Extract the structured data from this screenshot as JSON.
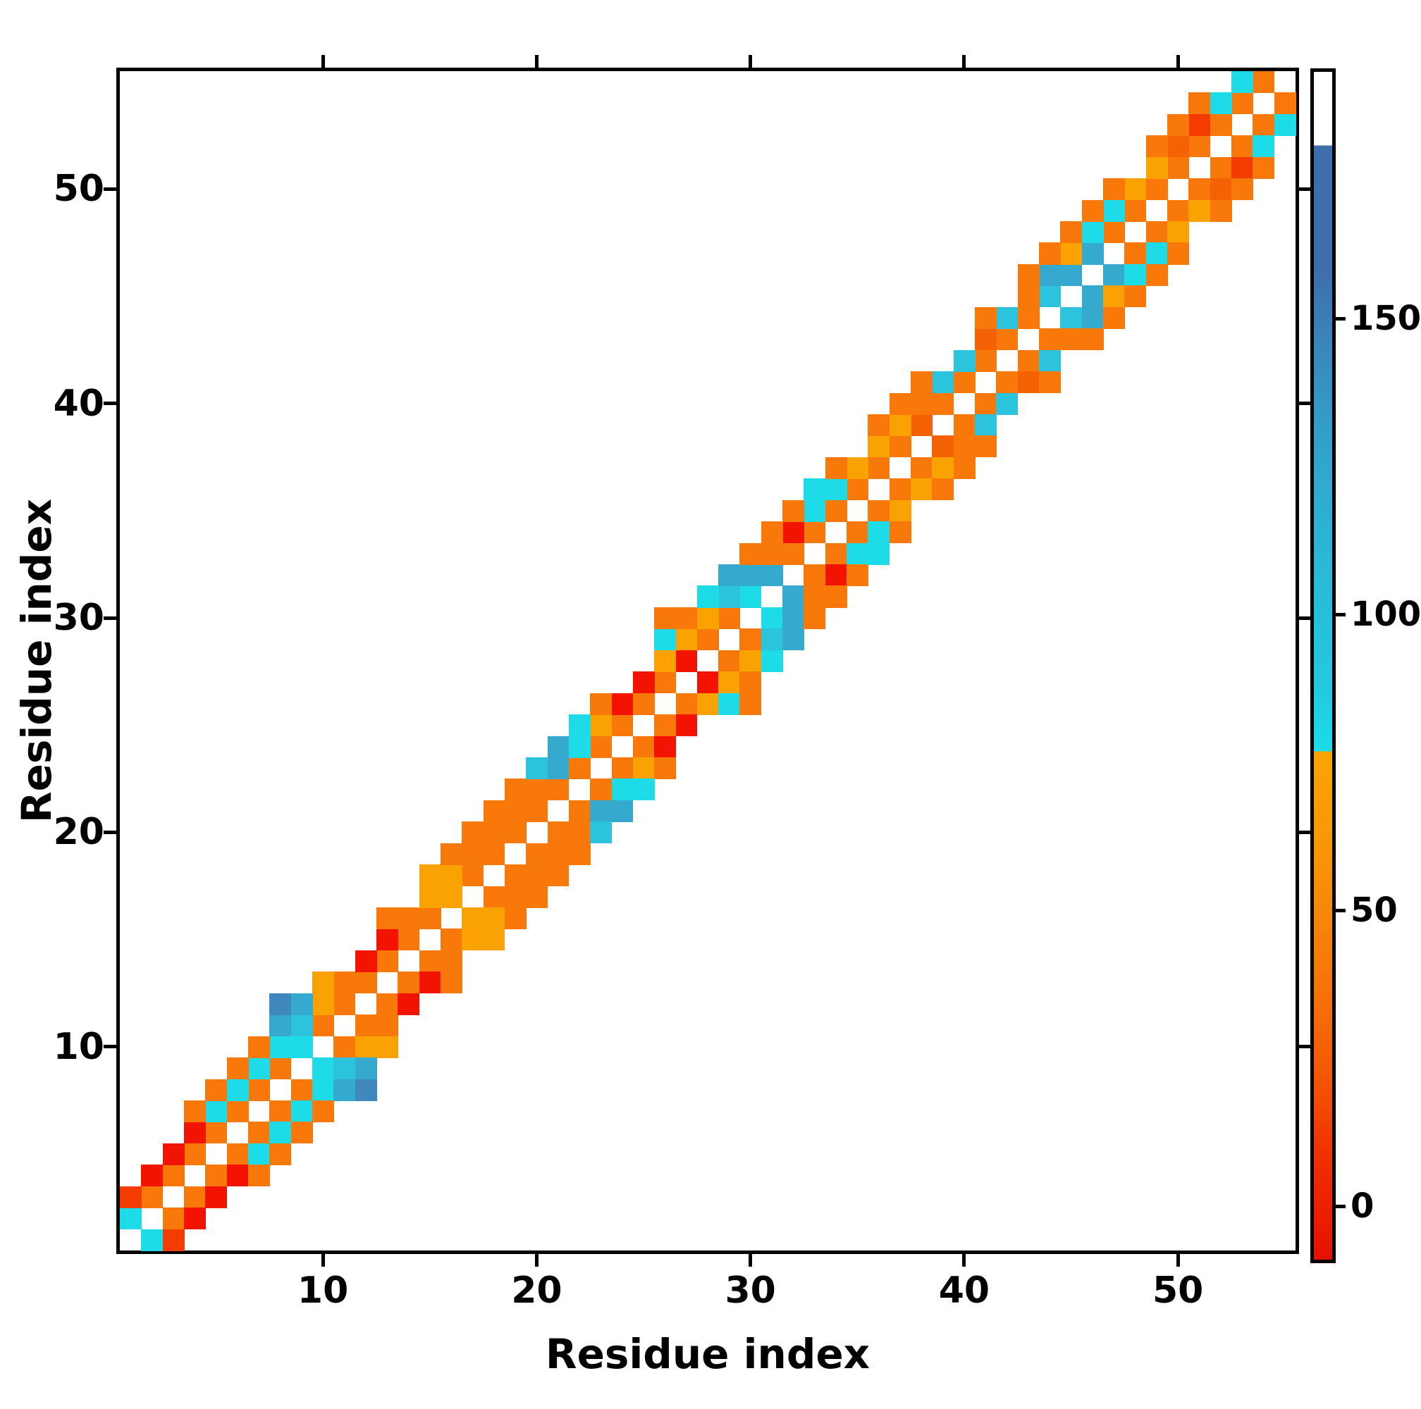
{
  "axes": {
    "xlabel": "Residue index",
    "ylabel": "Residue index",
    "x_ticks": [
      10,
      20,
      30,
      40,
      50
    ],
    "y_ticks": [
      10,
      20,
      30,
      40,
      50
    ]
  },
  "colorbar": {
    "ticks": [
      0,
      50,
      100,
      150
    ],
    "gradient_stops": [
      [
        "0%",
        "#FFFFFF"
      ],
      [
        "6.2%",
        "#FFFFFF"
      ],
      [
        "6.2%",
        "#3E6FAC"
      ],
      [
        "17%",
        "#3E6FAC"
      ],
      [
        "20%",
        "#3C7CB3"
      ],
      [
        "30%",
        "#339FC7"
      ],
      [
        "42%",
        "#2ABAD6"
      ],
      [
        "52%",
        "#23C9DF"
      ],
      [
        "57.2%",
        "#1CDCE9"
      ],
      [
        "57.2%",
        "#FBA303"
      ],
      [
        "65%",
        "#F89706"
      ],
      [
        "72%",
        "#F68309"
      ],
      [
        "78%",
        "#F57108"
      ],
      [
        "83%",
        "#F45D06"
      ],
      [
        "87%",
        "#F24A04"
      ],
      [
        "91%",
        "#F03102"
      ],
      [
        "95%",
        "#ED2201"
      ],
      [
        "100%",
        "#E61000"
      ]
    ]
  },
  "palette": {
    "R": "#F21300",
    "RO": "#F43C00",
    "O2": "#F56105",
    "O": "#F8790A",
    "A": "#FBA203",
    "C": "#1EDBE8",
    "C2": "#2BC4DC",
    "SB": "#36A9CE",
    "DSB": "#3F87BC"
  },
  "chart_data": {
    "type": "heatmap",
    "title": "",
    "xlabel": "Residue index",
    "ylabel": "Residue index",
    "n_residues": 55,
    "symmetric": true,
    "background_value_color": "#FFFFFF",
    "value_range_shown_on_colorbar": [
      0,
      150
    ],
    "tone_values": {
      "R": 5,
      "RO": 15,
      "O2": 35,
      "O": 50,
      "A": 65,
      "C": 85,
      "C2": 100,
      "SB": 120,
      "DSB": 145
    },
    "cells": [
      [
        1,
        2,
        "C"
      ],
      [
        2,
        3,
        "O"
      ],
      [
        3,
        4,
        "O"
      ],
      [
        4,
        5,
        "O"
      ],
      [
        5,
        6,
        "O"
      ],
      [
        6,
        7,
        "O"
      ],
      [
        7,
        8,
        "O"
      ],
      [
        8,
        9,
        "O"
      ],
      [
        9,
        10,
        "C"
      ],
      [
        10,
        11,
        "O"
      ],
      [
        11,
        12,
        "O"
      ],
      [
        12,
        13,
        "O"
      ],
      [
        13,
        14,
        "O"
      ],
      [
        14,
        15,
        "O"
      ],
      [
        15,
        16,
        "O"
      ],
      [
        16,
        17,
        "A"
      ],
      [
        17,
        18,
        "O"
      ],
      [
        18,
        19,
        "O"
      ],
      [
        19,
        20,
        "O"
      ],
      [
        20,
        21,
        "O"
      ],
      [
        21,
        22,
        "O"
      ],
      [
        22,
        23,
        "O"
      ],
      [
        23,
        24,
        "O"
      ],
      [
        24,
        25,
        "O"
      ],
      [
        25,
        26,
        "O"
      ],
      [
        26,
        27,
        "O"
      ],
      [
        27,
        28,
        "R"
      ],
      [
        28,
        29,
        "O"
      ],
      [
        29,
        30,
        "O"
      ],
      [
        30,
        31,
        "C"
      ],
      [
        31,
        32,
        "SB"
      ],
      [
        32,
        33,
        "O"
      ],
      [
        33,
        34,
        "O"
      ],
      [
        34,
        35,
        "O"
      ],
      [
        35,
        36,
        "O"
      ],
      [
        36,
        37,
        "O"
      ],
      [
        37,
        38,
        "O"
      ],
      [
        38,
        39,
        "O2"
      ],
      [
        39,
        40,
        "O"
      ],
      [
        40,
        41,
        "O"
      ],
      [
        41,
        42,
        "O"
      ],
      [
        42,
        43,
        "O"
      ],
      [
        43,
        44,
        "O"
      ],
      [
        44,
        45,
        "C2"
      ],
      [
        45,
        46,
        "SB"
      ],
      [
        46,
        47,
        "SB"
      ],
      [
        47,
        48,
        "O"
      ],
      [
        48,
        49,
        "O"
      ],
      [
        49,
        50,
        "O"
      ],
      [
        50,
        51,
        "O"
      ],
      [
        51,
        52,
        "O"
      ],
      [
        52,
        53,
        "O"
      ],
      [
        53,
        54,
        "O"
      ],
      [
        54,
        55,
        "O"
      ],
      [
        1,
        3,
        "RO"
      ],
      [
        2,
        4,
        "R"
      ],
      [
        3,
        5,
        "R"
      ],
      [
        4,
        6,
        "R"
      ],
      [
        5,
        7,
        "C"
      ],
      [
        6,
        8,
        "C"
      ],
      [
        7,
        9,
        "C"
      ],
      [
        8,
        10,
        "C"
      ],
      [
        9,
        11,
        "C2"
      ],
      [
        10,
        12,
        "A"
      ],
      [
        11,
        13,
        "O"
      ],
      [
        12,
        14,
        "R"
      ],
      [
        13,
        15,
        "R"
      ],
      [
        14,
        16,
        "O"
      ],
      [
        15,
        17,
        "A"
      ],
      [
        16,
        18,
        "A"
      ],
      [
        17,
        19,
        "O"
      ],
      [
        18,
        20,
        "O"
      ],
      [
        19,
        21,
        "O"
      ],
      [
        20,
        22,
        "O"
      ],
      [
        21,
        23,
        "SB"
      ],
      [
        22,
        24,
        "C"
      ],
      [
        23,
        25,
        "A"
      ],
      [
        24,
        26,
        "R"
      ],
      [
        25,
        27,
        "R"
      ],
      [
        26,
        28,
        "A"
      ],
      [
        27,
        29,
        "A"
      ],
      [
        28,
        30,
        "A"
      ],
      [
        29,
        31,
        "C2"
      ],
      [
        30,
        32,
        "SB"
      ],
      [
        31,
        33,
        "O"
      ],
      [
        32,
        34,
        "R"
      ],
      [
        33,
        35,
        "C"
      ],
      [
        34,
        36,
        "C"
      ],
      [
        35,
        37,
        "A"
      ],
      [
        36,
        38,
        "A"
      ],
      [
        37,
        39,
        "A"
      ],
      [
        38,
        40,
        "O"
      ],
      [
        39,
        41,
        "C2"
      ],
      [
        40,
        42,
        "C2"
      ],
      [
        41,
        43,
        "O2"
      ],
      [
        42,
        44,
        "C2"
      ],
      [
        43,
        45,
        "O"
      ],
      [
        44,
        46,
        "SB"
      ],
      [
        45,
        47,
        "A"
      ],
      [
        46,
        48,
        "C"
      ],
      [
        47,
        49,
        "C"
      ],
      [
        48,
        50,
        "A"
      ],
      [
        49,
        51,
        "A"
      ],
      [
        50,
        52,
        "O2"
      ],
      [
        51,
        53,
        "RO"
      ],
      [
        52,
        54,
        "C"
      ],
      [
        53,
        55,
        "C"
      ],
      [
        4,
        7,
        "O"
      ],
      [
        5,
        8,
        "O"
      ],
      [
        6,
        9,
        "O"
      ],
      [
        7,
        10,
        "O"
      ],
      [
        8,
        11,
        "SB"
      ],
      [
        9,
        12,
        "SB"
      ],
      [
        10,
        13,
        "A"
      ],
      [
        13,
        16,
        "O"
      ],
      [
        15,
        18,
        "A"
      ],
      [
        16,
        19,
        "O"
      ],
      [
        17,
        20,
        "O"
      ],
      [
        18,
        21,
        "O"
      ],
      [
        19,
        22,
        "O"
      ],
      [
        20,
        23,
        "C2"
      ],
      [
        21,
        24,
        "SB"
      ],
      [
        22,
        25,
        "C"
      ],
      [
        23,
        26,
        "O"
      ],
      [
        26,
        29,
        "C"
      ],
      [
        27,
        30,
        "O"
      ],
      [
        28,
        31,
        "C"
      ],
      [
        29,
        32,
        "SB"
      ],
      [
        30,
        33,
        "O"
      ],
      [
        31,
        34,
        "O"
      ],
      [
        32,
        35,
        "O"
      ],
      [
        33,
        36,
        "C"
      ],
      [
        34,
        37,
        "O"
      ],
      [
        36,
        39,
        "O"
      ],
      [
        37,
        40,
        "O"
      ],
      [
        38,
        41,
        "O"
      ],
      [
        41,
        44,
        "O"
      ],
      [
        43,
        46,
        "O"
      ],
      [
        44,
        47,
        "O"
      ],
      [
        45,
        48,
        "O"
      ],
      [
        46,
        49,
        "O"
      ],
      [
        47,
        50,
        "O"
      ],
      [
        49,
        52,
        "O"
      ],
      [
        50,
        53,
        "O"
      ],
      [
        51,
        54,
        "O"
      ],
      [
        8,
        12,
        "DSB"
      ],
      [
        26,
        30,
        "O"
      ]
    ]
  }
}
